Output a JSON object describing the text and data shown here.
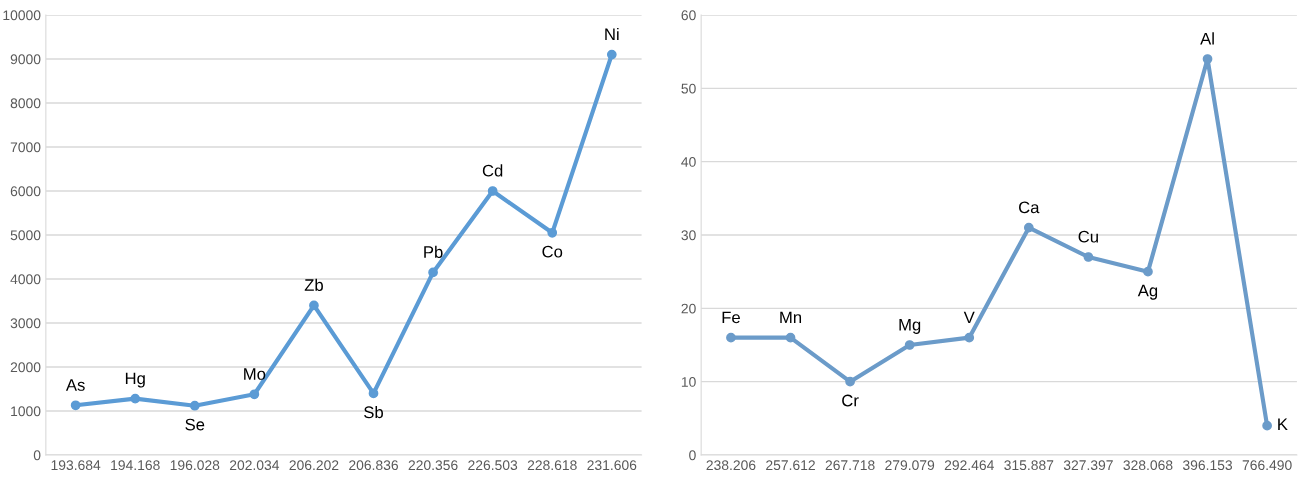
{
  "chart_data": [
    {
      "type": "line",
      "categories": [
        "193.684",
        "194.168",
        "196.028",
        "202.034",
        "206.202",
        "206.836",
        "220.356",
        "226.503",
        "228.618",
        "231.606"
      ],
      "series": [
        {
          "color": "#5b9bd5",
          "values": [
            1130,
            1280,
            1120,
            1380,
            3400,
            1400,
            4150,
            6000,
            5050,
            9100
          ]
        }
      ],
      "ylim": [
        0,
        10000
      ],
      "yticks": [
        0,
        1000,
        2000,
        3000,
        4000,
        5000,
        6000,
        7000,
        8000,
        9000,
        10000
      ],
      "grid": "y",
      "legend": false,
      "marker": "circle",
      "line_style": "solid",
      "annotations": [
        {
          "text": "As",
          "x": "193.684",
          "y": 1130
        },
        {
          "text": "Hg",
          "x": "194.168",
          "y": 1280
        },
        {
          "text": "Se",
          "x": "196.028",
          "y": 1120
        },
        {
          "text": "Mo",
          "x": "202.034",
          "y": 1380
        },
        {
          "text": "Zb",
          "x": "206.202",
          "y": 3400
        },
        {
          "text": "Sb",
          "x": "206.836",
          "y": 1400
        },
        {
          "text": "Pb",
          "x": "220.356",
          "y": 4150
        },
        {
          "text": "Cd",
          "x": "226.503",
          "y": 6000
        },
        {
          "text": "Co",
          "x": "228.618",
          "y": 5050
        },
        {
          "text": "Ni",
          "x": "231.606",
          "y": 9100
        }
      ]
    },
    {
      "type": "line",
      "categories": [
        "238.206",
        "257.612",
        "267.718",
        "279.079",
        "292.464",
        "315.887",
        "327.397",
        "328.068",
        "396.153",
        "766.490"
      ],
      "series": [
        {
          "color": "#6b9bc9",
          "values": [
            16,
            16,
            10,
            15,
            16,
            31,
            27,
            25,
            54,
            4
          ]
        }
      ],
      "ylim": [
        0,
        60
      ],
      "yticks": [
        0,
        10,
        20,
        30,
        40,
        50,
        60
      ],
      "grid": "y",
      "legend": false,
      "marker": "circle",
      "line_style": "solid",
      "annotations": [
        {
          "text": "Fe",
          "x": "238.206",
          "y": 16
        },
        {
          "text": "Mn",
          "x": "257.612",
          "y": 16
        },
        {
          "text": "Cr",
          "x": "267.718",
          "y": 10
        },
        {
          "text": "Mg",
          "x": "279.079",
          "y": 15
        },
        {
          "text": "V",
          "x": "292.464",
          "y": 16
        },
        {
          "text": "Ca",
          "x": "315.887",
          "y": 31
        },
        {
          "text": "Cu",
          "x": "327.397",
          "y": 27
        },
        {
          "text": "Ag",
          "x": "328.068",
          "y": 25
        },
        {
          "text": "Al",
          "x": "396.153",
          "y": 54
        },
        {
          "text": "K",
          "x": "766.490",
          "y": 4
        }
      ]
    }
  ]
}
